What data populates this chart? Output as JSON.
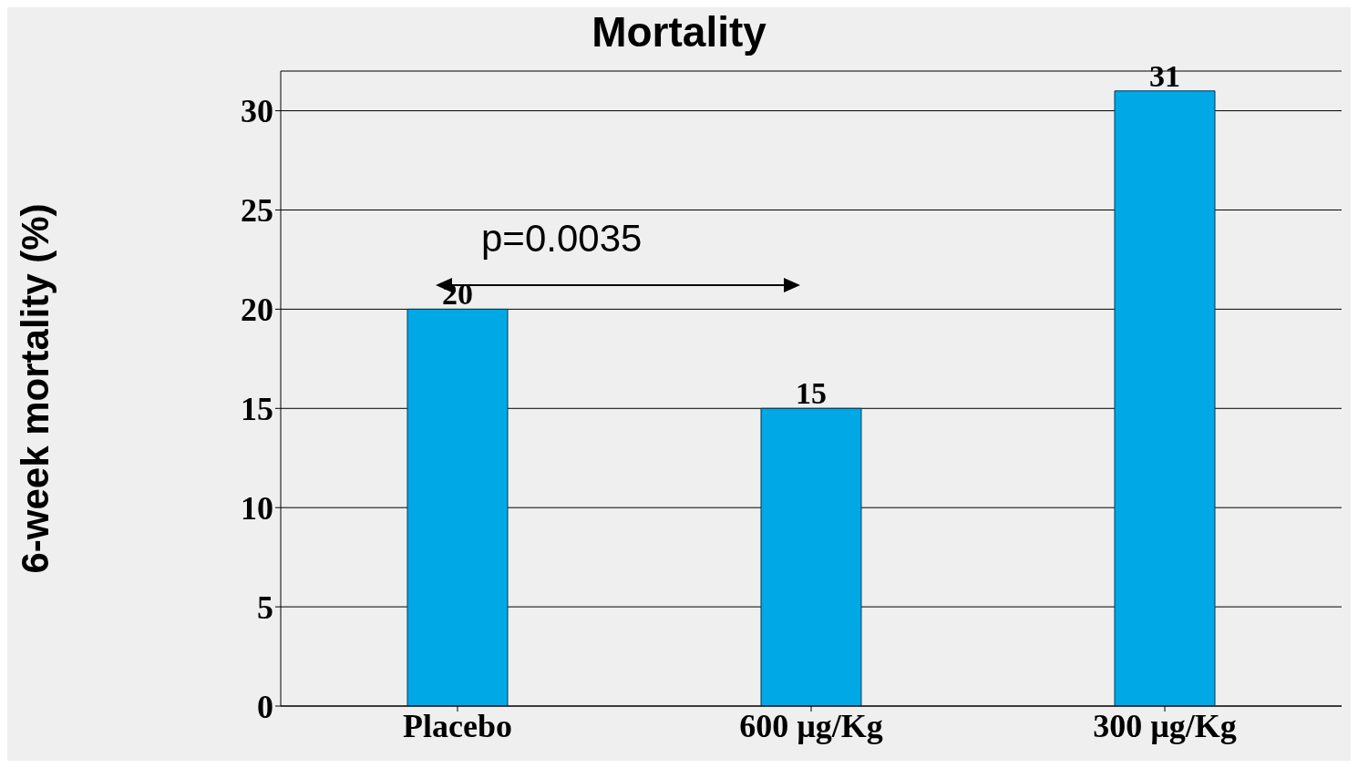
{
  "chart_data": {
    "type": "bar",
    "title": "Mortality",
    "ylabel": "6-week mortality (%)",
    "categories": [
      "Placebo",
      "600 µg/Kg",
      "300 µg/Kg"
    ],
    "values": [
      20,
      15,
      31
    ],
    "color": "#00a8e6",
    "data_labels": true,
    "ylim": [
      0,
      32
    ],
    "yticks": [
      0,
      5,
      10,
      15,
      20,
      25,
      30
    ],
    "grid": "y",
    "annotations": [
      "p=0.0035"
    ]
  }
}
